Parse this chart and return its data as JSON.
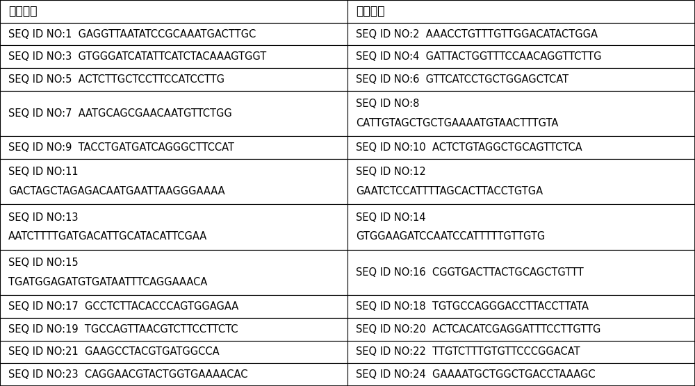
{
  "header": [
    "正向引物",
    "反向引物"
  ],
  "rows": [
    [
      "SEQ ID NO:1  GAGGTTAATATCCGCAAATGACTTGC",
      "SEQ ID NO:2  AAACCTGTTTGTTGGACATACTGGA"
    ],
    [
      "SEQ ID NO:3  GTGGGATCATATTCATCTACAAAGTGGT",
      "SEQ ID NO:4  GATTACTGGTTTCCAACAGGTTCTTG"
    ],
    [
      "SEQ ID NO:5  ACTCTTGCTCCTTCCATCCTTG",
      "SEQ ID NO:6  GTTCATCCTGCTGGAGCTCAT"
    ],
    [
      "SEQ ID NO:7  AATGCAGCGAACAATGTTCTGG",
      "SEQ ID NO:8\nCATTGTAGCTGCTGAAAATGTAACTTTGTA"
    ],
    [
      "SEQ ID NO:9  TACCTGATGATCAGGGCTTCCAT",
      "SEQ ID NO:10  ACTCTGTAGGCTGCAGTTCTCA"
    ],
    [
      "SEQ ID NO:11\nGACTAGCTAGAGACAATGAATTAAGGGAAAA",
      "SEQ ID NO:12\nGAATCTCCATTTTAGCACTTACCTGTGA"
    ],
    [
      "SEQ ID NO:13\nAATCTTTTGATGACATTGCATACATTCGAA",
      "SEQ ID NO:14\nGTGGAAGATCCAATCCATTTTTGTTGTG"
    ],
    [
      "SEQ ID NO:15\nTGATGGAGATGTGATAATTTCAGGAAACA",
      "SEQ ID NO:16  CGGTGACTTACTGCAGCTGTTT"
    ],
    [
      "SEQ ID NO:17  GCCTCTTACACCCAGTGGAGAA",
      "SEQ ID NO:18  TGTGCCAGGGACCTTACCTTATA"
    ],
    [
      "SEQ ID NO:19  TGCCAGTTAACGTCTTCCTTCTC",
      "SEQ ID NO:20  ACTCACATCGAGGATTTCCTTGTTG"
    ],
    [
      "SEQ ID NO:21  GAAGCCTACGTGATGGCCA",
      "SEQ ID NO:22  TTGTCTTTGTGTTCCCGGACAT"
    ],
    [
      "SEQ ID NO:23  CAGGAACGTACTGGTGAAAACAC",
      "SEQ ID NO:24  GAAAATGCTGGCTGACCTAAAGC"
    ]
  ],
  "bg_color": "#ffffff",
  "border_color": "#000000",
  "text_color": "#000000",
  "header_font_size": 12.5,
  "cell_font_size": 10.5,
  "fig_width": 10.0,
  "fig_height": 5.56,
  "dpi": 100
}
